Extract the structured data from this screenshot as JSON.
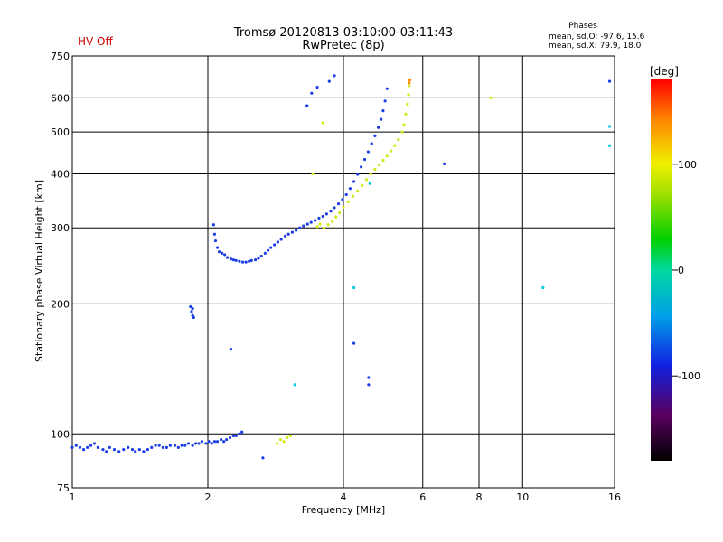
{
  "chart_data": {
    "type": "scatter",
    "title": "Tromsø 20120813 03:10:00-03:11:43",
    "subtitle": "RwPretec (8p)",
    "status_label": "HV Off",
    "stats": {
      "header": "Phases",
      "line_o": "mean, sd,O: -97.6, 15.6",
      "line_x": "mean, sd,X:  79.9, 18.0"
    },
    "xlabel": "Frequency [MHz]",
    "ylabel": "Stationary phase Virtual Height [km]",
    "xscale": "log",
    "yscale": "log",
    "xlim": [
      1,
      16
    ],
    "ylim": [
      75,
      750
    ],
    "xticks": [
      1,
      2,
      4,
      6,
      8,
      10,
      16
    ],
    "yticks": [
      75,
      100,
      200,
      300,
      400,
      500,
      600,
      750
    ],
    "grid": true,
    "colorbar": {
      "label": "[deg]",
      "range": [
        -180,
        180
      ],
      "ticks": [
        -100,
        0,
        100
      ]
    },
    "series": [
      {
        "color": "#1c3ee6",
        "points": [
          [
            1.0,
            93
          ],
          [
            1.02,
            94
          ],
          [
            1.04,
            93
          ],
          [
            1.06,
            92
          ],
          [
            1.08,
            93
          ],
          [
            1.1,
            94
          ],
          [
            1.12,
            95
          ],
          [
            1.14,
            93
          ],
          [
            1.17,
            92
          ],
          [
            1.19,
            91
          ],
          [
            1.21,
            93
          ],
          [
            1.24,
            92
          ],
          [
            1.27,
            91
          ],
          [
            1.3,
            92
          ],
          [
            1.33,
            93
          ],
          [
            1.36,
            92
          ],
          [
            1.38,
            91
          ],
          [
            1.41,
            92
          ],
          [
            1.44,
            91
          ],
          [
            1.47,
            92
          ],
          [
            1.5,
            93
          ],
          [
            1.53,
            94
          ],
          [
            1.56,
            94
          ],
          [
            1.59,
            93
          ],
          [
            1.62,
            93
          ],
          [
            1.65,
            94
          ],
          [
            1.69,
            94
          ],
          [
            1.72,
            93
          ],
          [
            1.75,
            94
          ],
          [
            1.78,
            94
          ],
          [
            1.81,
            95
          ],
          [
            1.85,
            94
          ],
          [
            1.88,
            95
          ],
          [
            1.91,
            95
          ],
          [
            1.94,
            96
          ],
          [
            1.98,
            95
          ],
          [
            2.01,
            96
          ],
          [
            2.04,
            95
          ],
          [
            2.07,
            96
          ],
          [
            2.1,
            96
          ],
          [
            2.14,
            97
          ],
          [
            2.17,
            96
          ],
          [
            2.2,
            97
          ],
          [
            2.24,
            98
          ],
          [
            2.28,
            99
          ],
          [
            2.31,
            99
          ],
          [
            2.35,
            100
          ],
          [
            2.38,
            101
          ],
          [
            1.83,
            197
          ],
          [
            1.84,
            192
          ],
          [
            1.85,
            188
          ],
          [
            1.86,
            186
          ],
          [
            1.85,
            195
          ],
          [
            2.06,
            305
          ],
          [
            2.07,
            290
          ],
          [
            2.08,
            280
          ],
          [
            2.1,
            270
          ],
          [
            2.12,
            264
          ],
          [
            2.15,
            262
          ],
          [
            2.18,
            260
          ],
          [
            2.21,
            256
          ],
          [
            2.25,
            254
          ],
          [
            2.28,
            253
          ],
          [
            2.31,
            252
          ],
          [
            2.35,
            251
          ],
          [
            2.39,
            250
          ],
          [
            2.43,
            250
          ],
          [
            2.47,
            251
          ],
          [
            2.5,
            252
          ],
          [
            2.55,
            253
          ],
          [
            2.59,
            255
          ],
          [
            2.63,
            258
          ],
          [
            2.68,
            262
          ],
          [
            2.72,
            266
          ],
          [
            2.76,
            270
          ],
          [
            2.81,
            274
          ],
          [
            2.86,
            278
          ],
          [
            2.91,
            282
          ],
          [
            2.97,
            287
          ],
          [
            3.02,
            290
          ],
          [
            3.08,
            293
          ],
          [
            3.14,
            296
          ],
          [
            3.2,
            300
          ],
          [
            3.26,
            303
          ],
          [
            3.33,
            306
          ],
          [
            3.39,
            309
          ],
          [
            3.46,
            312
          ],
          [
            3.53,
            316
          ],
          [
            3.6,
            319
          ],
          [
            3.67,
            323
          ],
          [
            3.75,
            328
          ],
          [
            3.82,
            334
          ],
          [
            3.9,
            341
          ],
          [
            3.98,
            349
          ],
          [
            4.06,
            358
          ],
          [
            4.14,
            370
          ],
          [
            4.22,
            384
          ],
          [
            4.3,
            399
          ],
          [
            4.38,
            415
          ],
          [
            4.46,
            432
          ],
          [
            4.54,
            450
          ],
          [
            4.62,
            470
          ],
          [
            4.7,
            490
          ],
          [
            4.78,
            512
          ],
          [
            4.85,
            535
          ],
          [
            4.9,
            560
          ],
          [
            4.95,
            590
          ],
          [
            5.0,
            630
          ],
          [
            3.32,
            575
          ],
          [
            3.4,
            615
          ],
          [
            3.5,
            635
          ],
          [
            3.72,
            655
          ],
          [
            3.82,
            675
          ],
          [
            2.25,
            157
          ],
          [
            2.65,
            88
          ],
          [
            4.22,
            162
          ],
          [
            4.55,
            135
          ],
          [
            4.55,
            130
          ],
          [
            6.7,
            422
          ],
          [
            15.6,
            655
          ]
        ]
      },
      {
        "color": "#00c8e0",
        "points": [
          [
            3.12,
            130
          ],
          [
            4.22,
            218
          ],
          [
            4.58,
            380
          ],
          [
            11.1,
            218
          ],
          [
            15.6,
            465
          ],
          [
            15.6,
            515
          ]
        ]
      },
      {
        "color": "#d4e81c",
        "points": [
          [
            2.85,
            95
          ],
          [
            2.9,
            97
          ],
          [
            2.95,
            96
          ],
          [
            3.0,
            98
          ],
          [
            3.05,
            99
          ],
          [
            3.5,
            302
          ],
          [
            3.55,
            306
          ],
          [
            3.62,
            300
          ],
          [
            3.7,
            305
          ],
          [
            3.78,
            310
          ],
          [
            3.85,
            318
          ],
          [
            3.92,
            325
          ],
          [
            4.0,
            335
          ],
          [
            4.1,
            345
          ],
          [
            4.2,
            355
          ],
          [
            4.3,
            365
          ],
          [
            4.4,
            376
          ],
          [
            4.5,
            388
          ],
          [
            4.6,
            400
          ],
          [
            4.7,
            410
          ],
          [
            4.8,
            420
          ],
          [
            4.9,
            430
          ],
          [
            5.0,
            440
          ],
          [
            5.1,
            452
          ],
          [
            5.2,
            465
          ],
          [
            5.3,
            480
          ],
          [
            5.4,
            500
          ],
          [
            5.45,
            520
          ],
          [
            5.5,
            550
          ],
          [
            5.55,
            580
          ],
          [
            5.58,
            610
          ],
          [
            5.6,
            640
          ],
          [
            3.42,
            400
          ],
          [
            3.6,
            525
          ],
          [
            8.5,
            600
          ]
        ]
      },
      {
        "color": "#ff8800",
        "points": [
          [
            5.6,
            650
          ],
          [
            5.62,
            660
          ]
        ]
      }
    ]
  }
}
